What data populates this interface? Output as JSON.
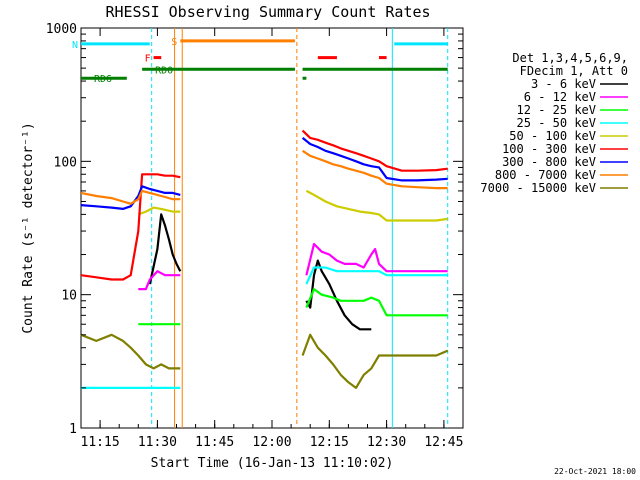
{
  "chart_data": {
    "type": "line",
    "title": "RHESSI Observing Summary Count Rates",
    "xlabel": "Start Time (16-Jan-13 11:10:02)",
    "ylabel": "Count Rate (s⁻¹ detector⁻¹)",
    "y_scale": "log",
    "ylim": [
      1,
      1000
    ],
    "xlim_minutes": [
      0,
      100
    ],
    "x_tick_labels": [
      "11:15",
      "11:30",
      "11:45",
      "12:00",
      "12:15",
      "12:30",
      "12:45"
    ],
    "x_tick_minutes": [
      5,
      20,
      35,
      50,
      65,
      80,
      95
    ],
    "y_tick_labels": [
      "1",
      "10",
      "100",
      "1000"
    ],
    "y_tick_values": [
      1,
      10,
      100,
      1000
    ],
    "legend_title": [
      "Det 1,3,4,5,6,9,",
      "FDecim 1, Att 0"
    ],
    "legend_position": "right",
    "date_stamp": "22-Oct-2021 18:00",
    "flags": [
      {
        "label": "S",
        "color": "#ff7f00"
      },
      {
        "label": "F",
        "color": "#ff0000"
      },
      {
        "label": "N",
        "color": "#00e5ff"
      },
      {
        "label": "RD0",
        "color": "#007f00"
      },
      {
        "label": "RD6",
        "color": "#007f00"
      }
    ],
    "series": [
      {
        "name": "3 - 6 keV",
        "color": "#000000",
        "segments": [
          [
            [
              18,
              12
            ],
            [
              20,
              22
            ],
            [
              21,
              40
            ],
            [
              22,
              33
            ],
            [
              23,
              26
            ],
            [
              24,
              20
            ],
            [
              25,
              17
            ],
            [
              26,
              15
            ]
          ],
          [
            [
              59,
              9
            ],
            [
              60,
              8
            ],
            [
              61,
              14
            ],
            [
              62,
              18
            ],
            [
              63,
              15
            ],
            [
              65,
              12
            ],
            [
              67,
              9
            ],
            [
              69,
              7
            ],
            [
              71,
              6
            ],
            [
              73,
              5.5
            ],
            [
              75,
              5.5
            ],
            [
              76,
              5.5
            ]
          ]
        ]
      },
      {
        "name": "6 - 12 keV",
        "color": "#ff00ff",
        "segments": [
          [
            [
              15,
              11
            ],
            [
              17,
              11
            ],
            [
              18,
              13
            ],
            [
              20,
              15
            ],
            [
              22,
              14
            ],
            [
              24,
              14
            ],
            [
              26,
              14
            ]
          ],
          [
            [
              59,
              14
            ],
            [
              61,
              24
            ],
            [
              63,
              21
            ],
            [
              65,
              20
            ],
            [
              67,
              18
            ],
            [
              69,
              17
            ],
            [
              72,
              17
            ],
            [
              74,
              16
            ],
            [
              76,
              20
            ],
            [
              77,
              22
            ],
            [
              78,
              17
            ],
            [
              80,
              15
            ],
            [
              84,
              15
            ],
            [
              88,
              15
            ],
            [
              93,
              15
            ],
            [
              96,
              15
            ]
          ]
        ]
      },
      {
        "name": "12 - 25 keV",
        "color": "#00ff00",
        "segments": [
          [
            [
              15,
              6
            ],
            [
              18,
              6
            ],
            [
              20,
              6
            ],
            [
              22,
              6
            ],
            [
              24,
              6
            ],
            [
              26,
              6
            ]
          ],
          [
            [
              59,
              8
            ],
            [
              61,
              11
            ],
            [
              63,
              10
            ],
            [
              66,
              9.5
            ],
            [
              68,
              9
            ],
            [
              70,
              9
            ],
            [
              72,
              9
            ],
            [
              74,
              9
            ],
            [
              76,
              9.5
            ],
            [
              78,
              9
            ],
            [
              80,
              7
            ],
            [
              84,
              7
            ],
            [
              88,
              7
            ],
            [
              93,
              7
            ],
            [
              96,
              7
            ]
          ]
        ]
      },
      {
        "name": "25 - 50 keV",
        "color": "#00ffff",
        "segments": [
          [
            [
              0,
              2
            ],
            [
              4,
              2
            ],
            [
              8,
              2
            ],
            [
              12,
              2
            ],
            [
              16,
              2
            ],
            [
              20,
              2
            ],
            [
              24,
              2
            ],
            [
              26,
              2
            ]
          ],
          [
            [
              59,
              12
            ],
            [
              61,
              16
            ],
            [
              64,
              16
            ],
            [
              67,
              15
            ],
            [
              70,
              15
            ],
            [
              73,
              15
            ],
            [
              76,
              15
            ],
            [
              78,
              15
            ],
            [
              80,
              14
            ],
            [
              84,
              14
            ],
            [
              88,
              14
            ],
            [
              93,
              14
            ],
            [
              96,
              14
            ]
          ]
        ]
      },
      {
        "name": "50 - 100 keV",
        "color": "#cccc00",
        "segments": [
          [
            [
              15,
              40
            ],
            [
              17,
              42
            ],
            [
              19,
              45
            ],
            [
              21,
              44
            ],
            [
              24,
              42
            ],
            [
              26,
              42
            ]
          ],
          [
            [
              59,
              60
            ],
            [
              61,
              56
            ],
            [
              64,
              50
            ],
            [
              67,
              46
            ],
            [
              70,
              44
            ],
            [
              73,
              42
            ],
            [
              76,
              41
            ],
            [
              78,
              40
            ],
            [
              80,
              36
            ],
            [
              84,
              36
            ],
            [
              88,
              36
            ],
            [
              93,
              36
            ],
            [
              96,
              37
            ]
          ]
        ]
      },
      {
        "name": "100 - 300 keV",
        "color": "#ff0000",
        "segments": [
          [
            [
              0,
              14
            ],
            [
              4,
              13.5
            ],
            [
              8,
              13
            ],
            [
              11,
              13
            ],
            [
              13,
              14
            ],
            [
              15,
              30
            ],
            [
              16,
              80
            ],
            [
              18,
              80
            ],
            [
              20,
              80
            ],
            [
              22,
              78
            ],
            [
              24,
              78
            ],
            [
              26,
              76
            ]
          ],
          [
            [
              58,
              170
            ],
            [
              60,
              150
            ],
            [
              62,
              145
            ],
            [
              64,
              138
            ],
            [
              66,
              132
            ],
            [
              68,
              125
            ],
            [
              70,
              120
            ],
            [
              72,
              115
            ],
            [
              74,
              110
            ],
            [
              76,
              105
            ],
            [
              78,
              100
            ],
            [
              80,
              92
            ],
            [
              84,
              85
            ],
            [
              88,
              85
            ],
            [
              93,
              86
            ],
            [
              96,
              88
            ]
          ]
        ]
      },
      {
        "name": "300 - 800 keV",
        "color": "#0000ff",
        "segments": [
          [
            [
              0,
              47
            ],
            [
              4,
              46
            ],
            [
              8,
              45
            ],
            [
              11,
              44
            ],
            [
              13,
              46
            ],
            [
              15,
              55
            ],
            [
              16,
              65
            ],
            [
              18,
              62
            ],
            [
              20,
              60
            ],
            [
              22,
              58
            ],
            [
              24,
              58
            ],
            [
              26,
              56
            ]
          ],
          [
            [
              58,
              150
            ],
            [
              60,
              135
            ],
            [
              62,
              128
            ],
            [
              64,
              120
            ],
            [
              66,
              115
            ],
            [
              68,
              110
            ],
            [
              70,
              105
            ],
            [
              72,
              100
            ],
            [
              74,
              95
            ],
            [
              76,
              92
            ],
            [
              78,
              90
            ],
            [
              80,
              75
            ],
            [
              84,
              72
            ],
            [
              88,
              72
            ],
            [
              93,
              73
            ],
            [
              96,
              74
            ]
          ]
        ]
      },
      {
        "name": "800 - 7000 keV",
        "color": "#ff7f00",
        "segments": [
          [
            [
              0,
              58
            ],
            [
              4,
              55
            ],
            [
              8,
              53
            ],
            [
              11,
              50
            ],
            [
              13,
              48
            ],
            [
              15,
              52
            ],
            [
              16,
              60
            ],
            [
              18,
              58
            ],
            [
              20,
              56
            ],
            [
              22,
              54
            ],
            [
              24,
              52
            ],
            [
              26,
              52
            ]
          ],
          [
            [
              58,
              120
            ],
            [
              60,
              110
            ],
            [
              62,
              105
            ],
            [
              64,
              100
            ],
            [
              66,
              95
            ],
            [
              68,
              92
            ],
            [
              70,
              88
            ],
            [
              72,
              85
            ],
            [
              74,
              82
            ],
            [
              76,
              78
            ],
            [
              78,
              75
            ],
            [
              80,
              68
            ],
            [
              84,
              65
            ],
            [
              88,
              64
            ],
            [
              93,
              63
            ],
            [
              96,
              63
            ]
          ]
        ]
      },
      {
        "name": "7000 - 15000 keV",
        "color": "#7f7f00",
        "segments": [
          [
            [
              0,
              5
            ],
            [
              4,
              4.5
            ],
            [
              8,
              5
            ],
            [
              11,
              4.5
            ],
            [
              13,
              4
            ],
            [
              15,
              3.5
            ],
            [
              17,
              3
            ],
            [
              19,
              2.8
            ],
            [
              21,
              3
            ],
            [
              23,
              2.8
            ],
            [
              25,
              2.8
            ],
            [
              26,
              2.8
            ]
          ],
          [
            [
              58,
              3.5
            ],
            [
              60,
              5
            ],
            [
              62,
              4
            ],
            [
              64,
              3.5
            ],
            [
              66,
              3
            ],
            [
              68,
              2.5
            ],
            [
              70,
              2.2
            ],
            [
              72,
              2
            ],
            [
              74,
              2.5
            ],
            [
              76,
              2.8
            ],
            [
              78,
              3.5
            ],
            [
              80,
              3.5
            ],
            [
              84,
              3.5
            ],
            [
              88,
              3.5
            ],
            [
              93,
              3.5
            ],
            [
              96,
              3.8
            ]
          ]
        ]
      }
    ],
    "gaps": [
      {
        "start": 26,
        "end": 58
      }
    ],
    "vlines": [
      {
        "x": 18.5,
        "color": "#00e5ff",
        "style": "dashed"
      },
      {
        "x": 24.5,
        "color": "#ff7f00",
        "style": "solid"
      },
      {
        "x": 26.5,
        "color": "#ff7f00",
        "style": "solid"
      },
      {
        "x": 56.5,
        "color": "#ff7f00",
        "style": "dashed"
      },
      {
        "x": 81.5,
        "color": "#00e5ff",
        "style": "solid"
      },
      {
        "x": 96.0,
        "color": "#00e5ff",
        "style": "dashed"
      }
    ],
    "flag_bars": [
      {
        "label": "N",
        "color": "#00e5ff",
        "level": 760,
        "segments": [
          [
            0,
            18
          ],
          [
            82,
            96
          ]
        ]
      },
      {
        "label": "S",
        "color": "#ff7f00",
        "level": 800,
        "segments": [
          [
            26,
            56
          ]
        ]
      },
      {
        "label": "F",
        "color": "#ff0000",
        "level": 600,
        "segments": [
          [
            19,
            21
          ],
          [
            62,
            67
          ],
          [
            78,
            80
          ]
        ]
      },
      {
        "label": "RD0",
        "color": "#007f00",
        "level": 490,
        "segments": [
          [
            16,
            56
          ],
          [
            58,
            96
          ]
        ]
      },
      {
        "label": "RD6",
        "color": "#007f00",
        "level": 420,
        "segments": [
          [
            0,
            12
          ],
          [
            58,
            59
          ]
        ]
      }
    ]
  }
}
